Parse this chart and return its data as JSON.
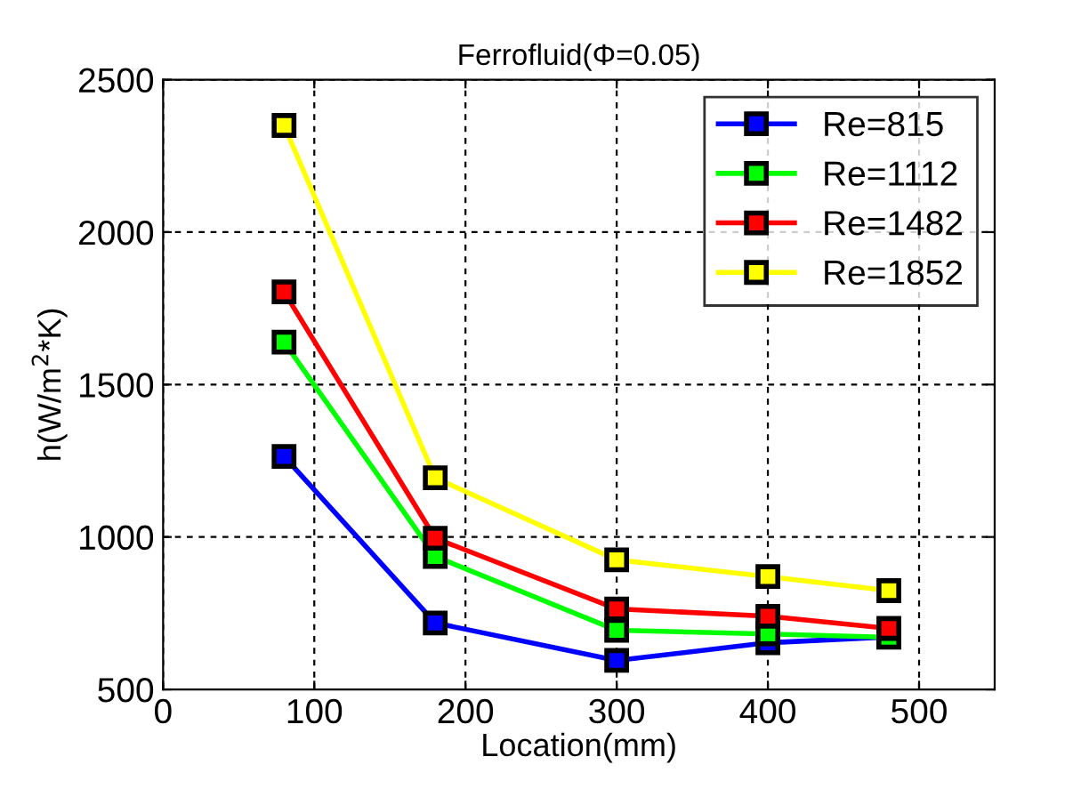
{
  "chart_data": {
    "type": "line",
    "title": "Ferrofluid(Φ=0.05)",
    "xlabel": "Location(mm)",
    "ylabel": "h(W/m$^{2}$*K)",
    "x": [
      80,
      180,
      300,
      400,
      480
    ],
    "series": [
      {
        "name": "Re=815",
        "color": "#0000ff",
        "values": [
          1264,
          718,
          595,
          653,
          672
        ]
      },
      {
        "name": "Re=1112",
        "color": "#00ff00",
        "values": [
          1639,
          936,
          694,
          682,
          671
        ]
      },
      {
        "name": "Re=1482",
        "color": "#ff0000",
        "values": [
          1804,
          996,
          764,
          740,
          700
        ]
      },
      {
        "name": "Re=1852",
        "color": "#ffff00",
        "values": [
          2350,
          1194,
          925,
          870,
          824
        ]
      }
    ],
    "xlim": [
      0,
      550
    ],
    "xticks": [
      0,
      100,
      200,
      300,
      400,
      500
    ],
    "ylim": [
      500,
      2500
    ],
    "yticks": [
      500,
      1000,
      1500,
      2000,
      2500
    ],
    "grid": true,
    "legend": "top right",
    "marker": "square",
    "line_style": "solid"
  }
}
